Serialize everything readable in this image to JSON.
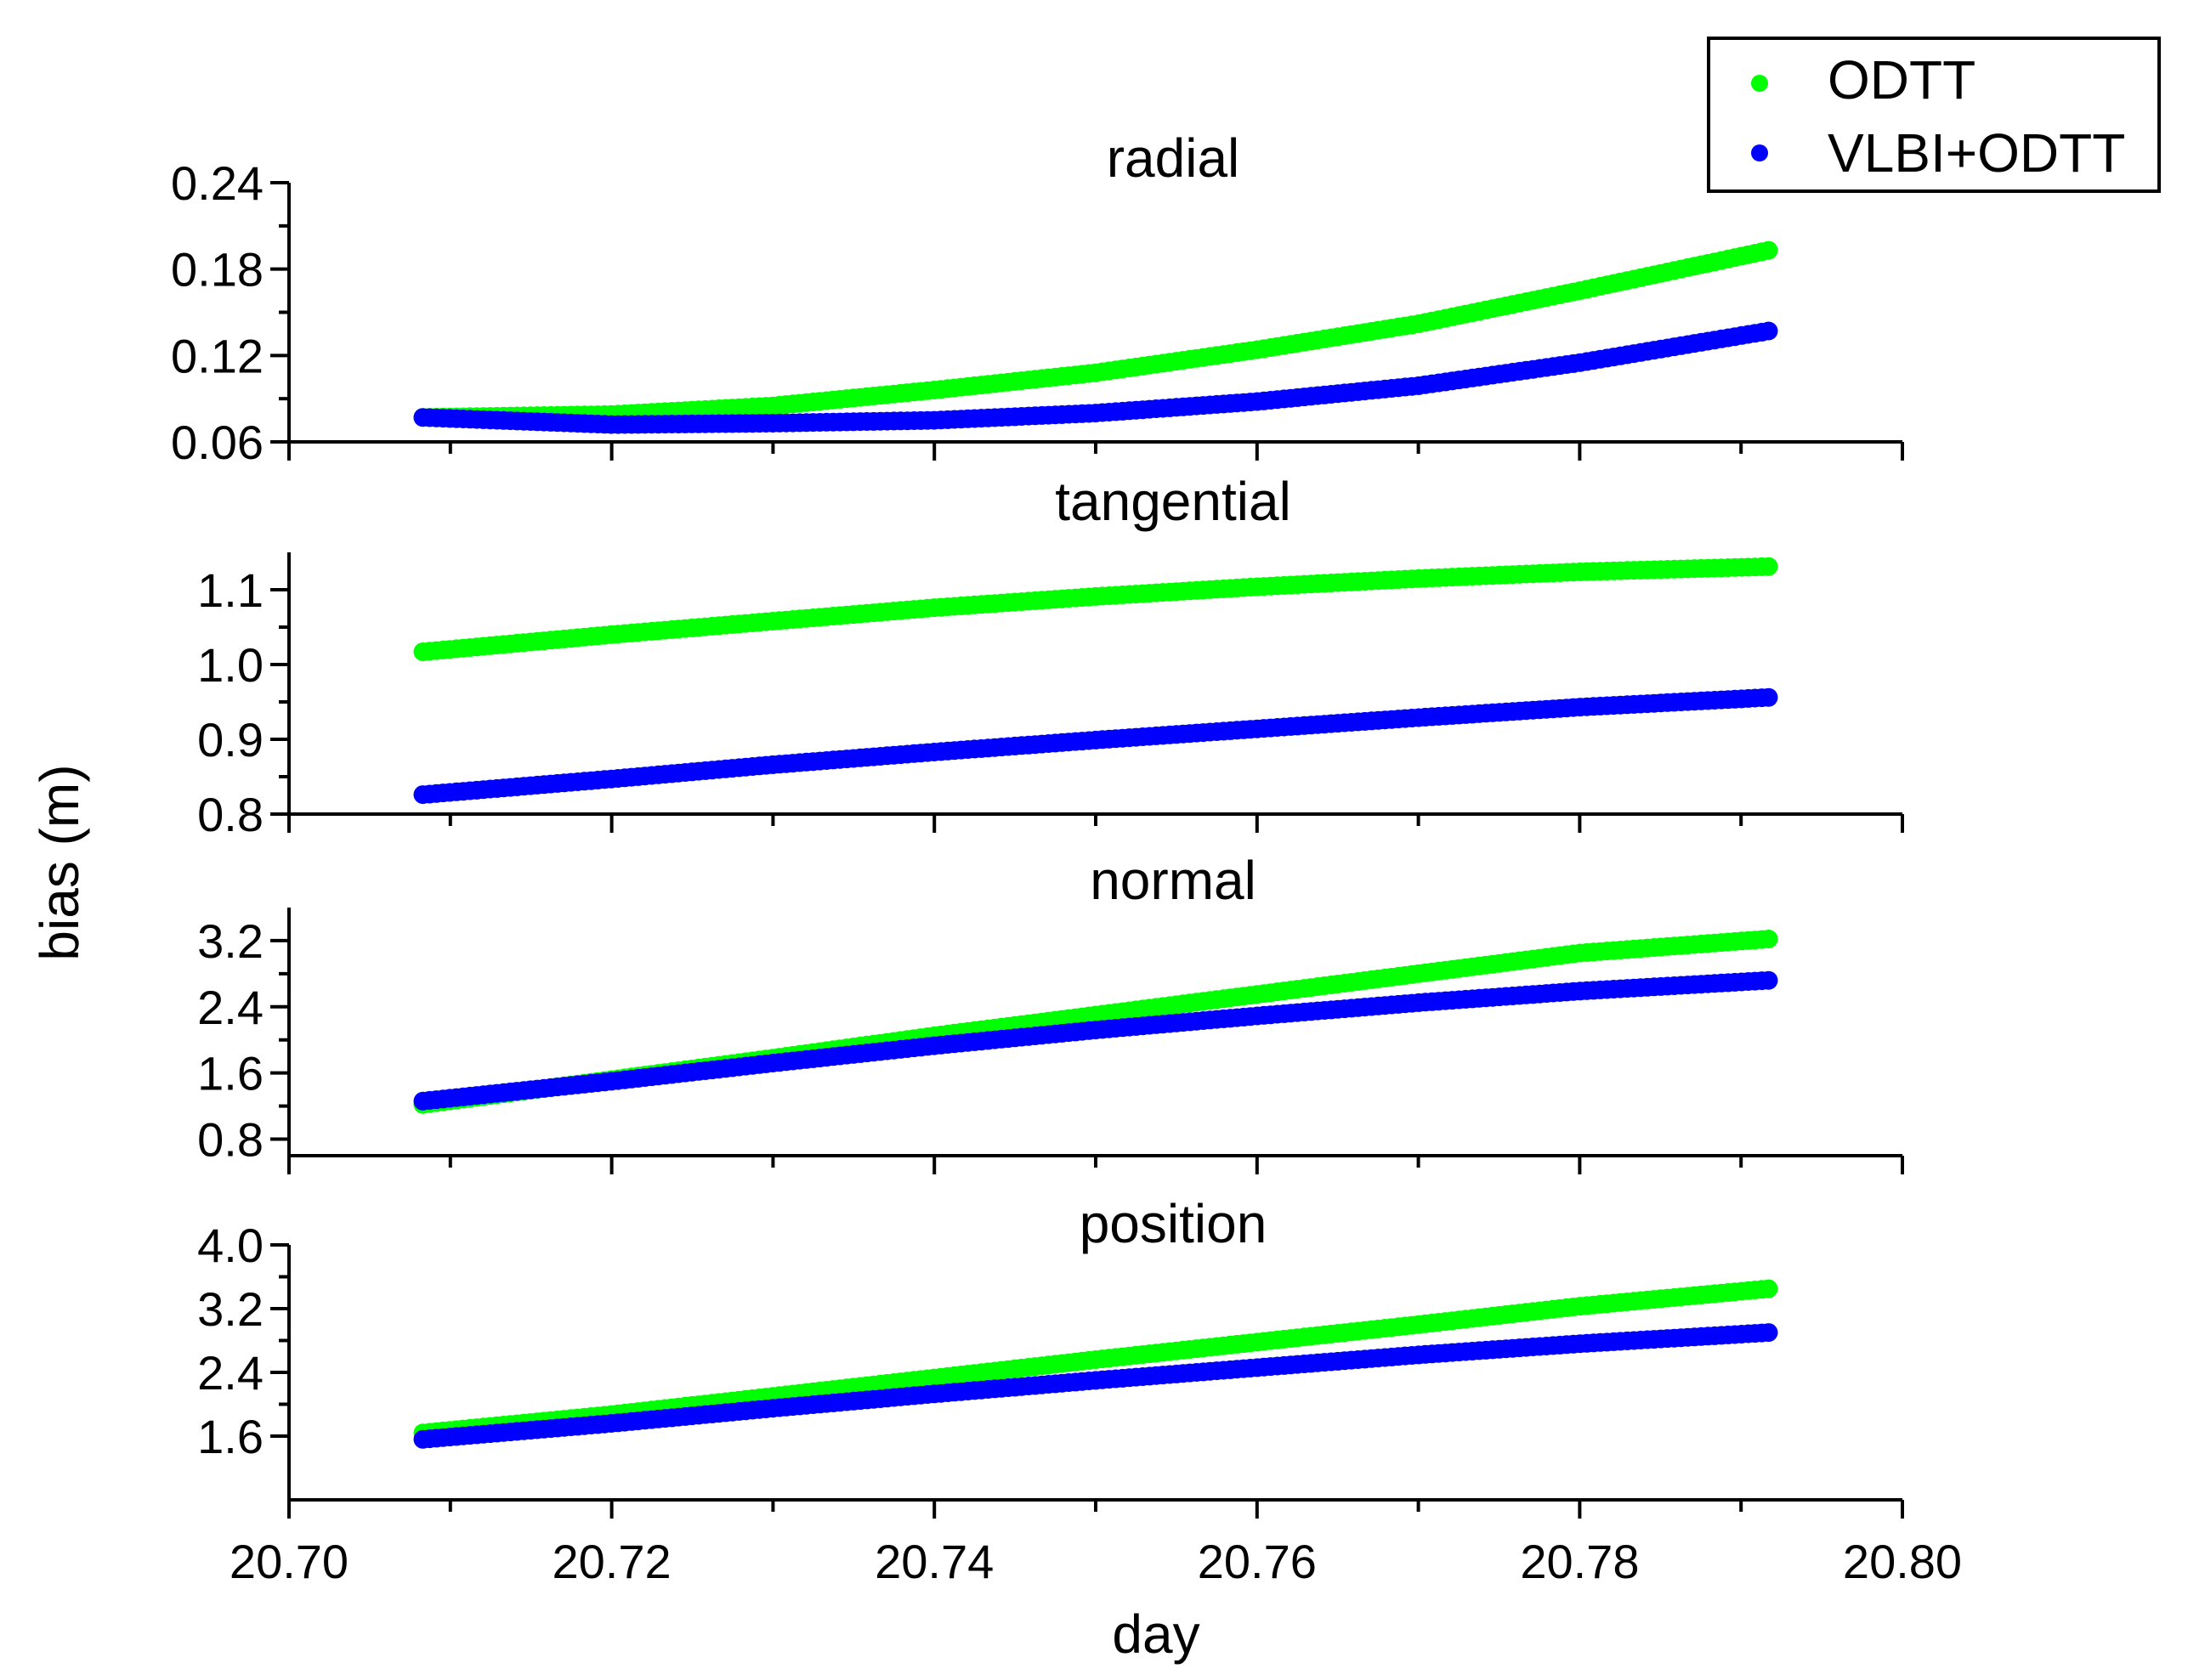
{
  "chart_data": {
    "type": "scatter",
    "xlabel": "day",
    "ylabel": "bias (m)",
    "xlim": [
      20.7,
      20.8
    ],
    "x_ticks": [
      "20.70",
      "20.72",
      "20.74",
      "20.76",
      "20.78",
      "20.80"
    ],
    "x_range": [
      20.7083,
      20.7917
    ],
    "legend": {
      "position": "top-right",
      "entries": [
        {
          "name": "ODTT",
          "color": "#00ff00"
        },
        {
          "name": "VLBI+ODTT",
          "color": "#0000ff"
        }
      ]
    },
    "panels": [
      {
        "title": "radial",
        "ylim": [
          0.06,
          0.24
        ],
        "y_ticks": [
          "0.06",
          "0.12",
          "0.18",
          "0.24"
        ],
        "series": [
          {
            "name": "ODTT",
            "color": "#00ff00",
            "points": [
              [
                20.7083,
                0.077
              ],
              [
                20.72,
                0.079
              ],
              [
                20.73,
                0.085
              ],
              [
                20.74,
                0.096
              ],
              [
                20.75,
                0.108
              ],
              [
                20.76,
                0.124
              ],
              [
                20.77,
                0.142
              ],
              [
                20.78,
                0.165
              ],
              [
                20.7917,
                0.193
              ]
            ]
          },
          {
            "name": "VLBI+ODTT",
            "color": "#0000ff",
            "points": [
              [
                20.7083,
                0.077
              ],
              [
                20.72,
                0.072
              ],
              [
                20.73,
                0.073
              ],
              [
                20.74,
                0.075
              ],
              [
                20.75,
                0.08
              ],
              [
                20.76,
                0.088
              ],
              [
                20.77,
                0.099
              ],
              [
                20.78,
                0.115
              ],
              [
                20.7917,
                0.137
              ]
            ]
          }
        ]
      },
      {
        "title": "tangential",
        "ylim": [
          0.8,
          1.15
        ],
        "y_ticks": [
          "0.8",
          "0.9",
          "1.0",
          "1.1"
        ],
        "series": [
          {
            "name": "ODTT",
            "color": "#00ff00",
            "points": [
              [
                20.7083,
                1.017
              ],
              [
                20.72,
                1.04
              ],
              [
                20.73,
                1.058
              ],
              [
                20.74,
                1.076
              ],
              [
                20.75,
                1.091
              ],
              [
                20.76,
                1.104
              ],
              [
                20.77,
                1.115
              ],
              [
                20.78,
                1.124
              ],
              [
                20.7917,
                1.131
              ]
            ]
          },
          {
            "name": "VLBI+ODTT",
            "color": "#0000ff",
            "points": [
              [
                20.7083,
                0.826
              ],
              [
                20.72,
                0.847
              ],
              [
                20.73,
                0.866
              ],
              [
                20.74,
                0.883
              ],
              [
                20.75,
                0.899
              ],
              [
                20.76,
                0.914
              ],
              [
                20.77,
                0.929
              ],
              [
                20.78,
                0.943
              ],
              [
                20.7917,
                0.956
              ]
            ]
          }
        ]
      },
      {
        "title": "normal",
        "ylim": [
          0.6,
          3.6
        ],
        "y_ticks": [
          "0.8",
          "1.6",
          "2.4",
          "3.2"
        ],
        "series": [
          {
            "name": "ODTT",
            "color": "#00ff00",
            "points": [
              [
                20.7083,
                1.22
              ],
              [
                20.72,
                1.52
              ],
              [
                20.73,
                1.78
              ],
              [
                20.74,
                2.05
              ],
              [
                20.75,
                2.3
              ],
              [
                20.76,
                2.55
              ],
              [
                20.77,
                2.8
              ],
              [
                20.78,
                3.05
              ],
              [
                20.7917,
                3.22
              ]
            ]
          },
          {
            "name": "VLBI+ODTT",
            "color": "#0000ff",
            "points": [
              [
                20.7083,
                1.26
              ],
              [
                20.72,
                1.5
              ],
              [
                20.73,
                1.72
              ],
              [
                20.74,
                1.93
              ],
              [
                20.75,
                2.12
              ],
              [
                20.76,
                2.29
              ],
              [
                20.77,
                2.45
              ],
              [
                20.78,
                2.59
              ],
              [
                20.7917,
                2.72
              ]
            ]
          }
        ]
      },
      {
        "title": "position",
        "ylim": [
          0.8,
          4.0
        ],
        "y_ticks": [
          "1.6",
          "2.4",
          "3.2",
          "4.0"
        ],
        "series": [
          {
            "name": "ODTT",
            "color": "#00ff00",
            "points": [
              [
                20.7083,
                1.64
              ],
              [
                20.72,
                1.87
              ],
              [
                20.73,
                2.1
              ],
              [
                20.74,
                2.33
              ],
              [
                20.75,
                2.56
              ],
              [
                20.76,
                2.78
              ],
              [
                20.77,
                3.0
              ],
              [
                20.78,
                3.23
              ],
              [
                20.7917,
                3.45
              ]
            ]
          },
          {
            "name": "VLBI+ODTT",
            "color": "#0000ff",
            "points": [
              [
                20.7083,
                1.56
              ],
              [
                20.72,
                1.76
              ],
              [
                20.73,
                1.95
              ],
              [
                20.74,
                2.13
              ],
              [
                20.75,
                2.3
              ],
              [
                20.76,
                2.46
              ],
              [
                20.77,
                2.62
              ],
              [
                20.78,
                2.76
              ],
              [
                20.7917,
                2.9
              ]
            ]
          }
        ]
      }
    ]
  }
}
